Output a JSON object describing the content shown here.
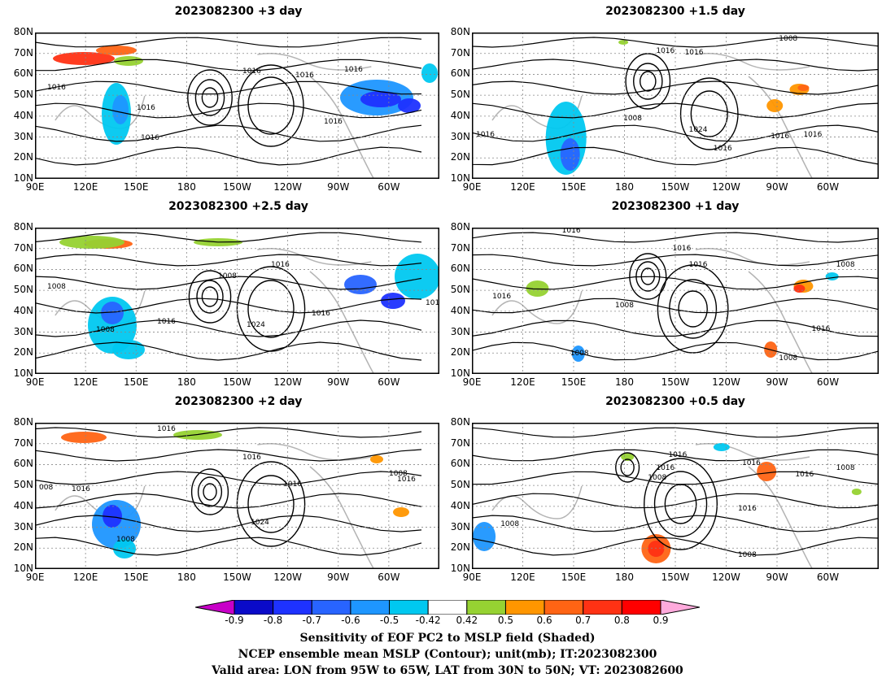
{
  "panels": [
    {
      "title": "2023082300 +3 day"
    },
    {
      "title": "2023082300 +1.5 day"
    },
    {
      "title": "2023082300 +2.5 day"
    },
    {
      "title": "2023082300 +1 day"
    },
    {
      "title": "2023082300 +2 day"
    },
    {
      "title": "2023082300 +0.5 day"
    }
  ],
  "axes": {
    "lat_labels": [
      "80N",
      "70N",
      "60N",
      "50N",
      "40N",
      "30N",
      "20N",
      "10N"
    ],
    "lon_labels": [
      "90E",
      "120E",
      "150E",
      "180",
      "150W",
      "120W",
      "90W",
      "60W"
    ]
  },
  "contour_labels": [
    "1008",
    "1016",
    "1024",
    "008",
    "101"
  ],
  "colorbar": {
    "labels": [
      "-0.9",
      "-0.8",
      "-0.7",
      "-0.6",
      "-0.5",
      "-0.42",
      "0.42",
      "0.5",
      "0.6",
      "0.7",
      "0.8",
      "0.9"
    ],
    "colors": [
      "#0a0ac8",
      "#1e32ff",
      "#2864ff",
      "#1e96ff",
      "#00c8f0",
      "#ffffff",
      "#96d232",
      "#ff9600",
      "#ff6414",
      "#ff3214",
      "#ff0000"
    ],
    "end_colors": {
      "low": "#c800c8",
      "high": "#ffaadc"
    }
  },
  "captions": [
    "Sensitivity of EOF PC2 to MSLP field (Shaded)",
    "NCEP ensemble mean MSLP (Contour); unit(mb); IT:2023082300",
    "Valid area: LON from 95W to 65W, LAT from 30N to 50N; VT: 2023082600"
  ]
}
